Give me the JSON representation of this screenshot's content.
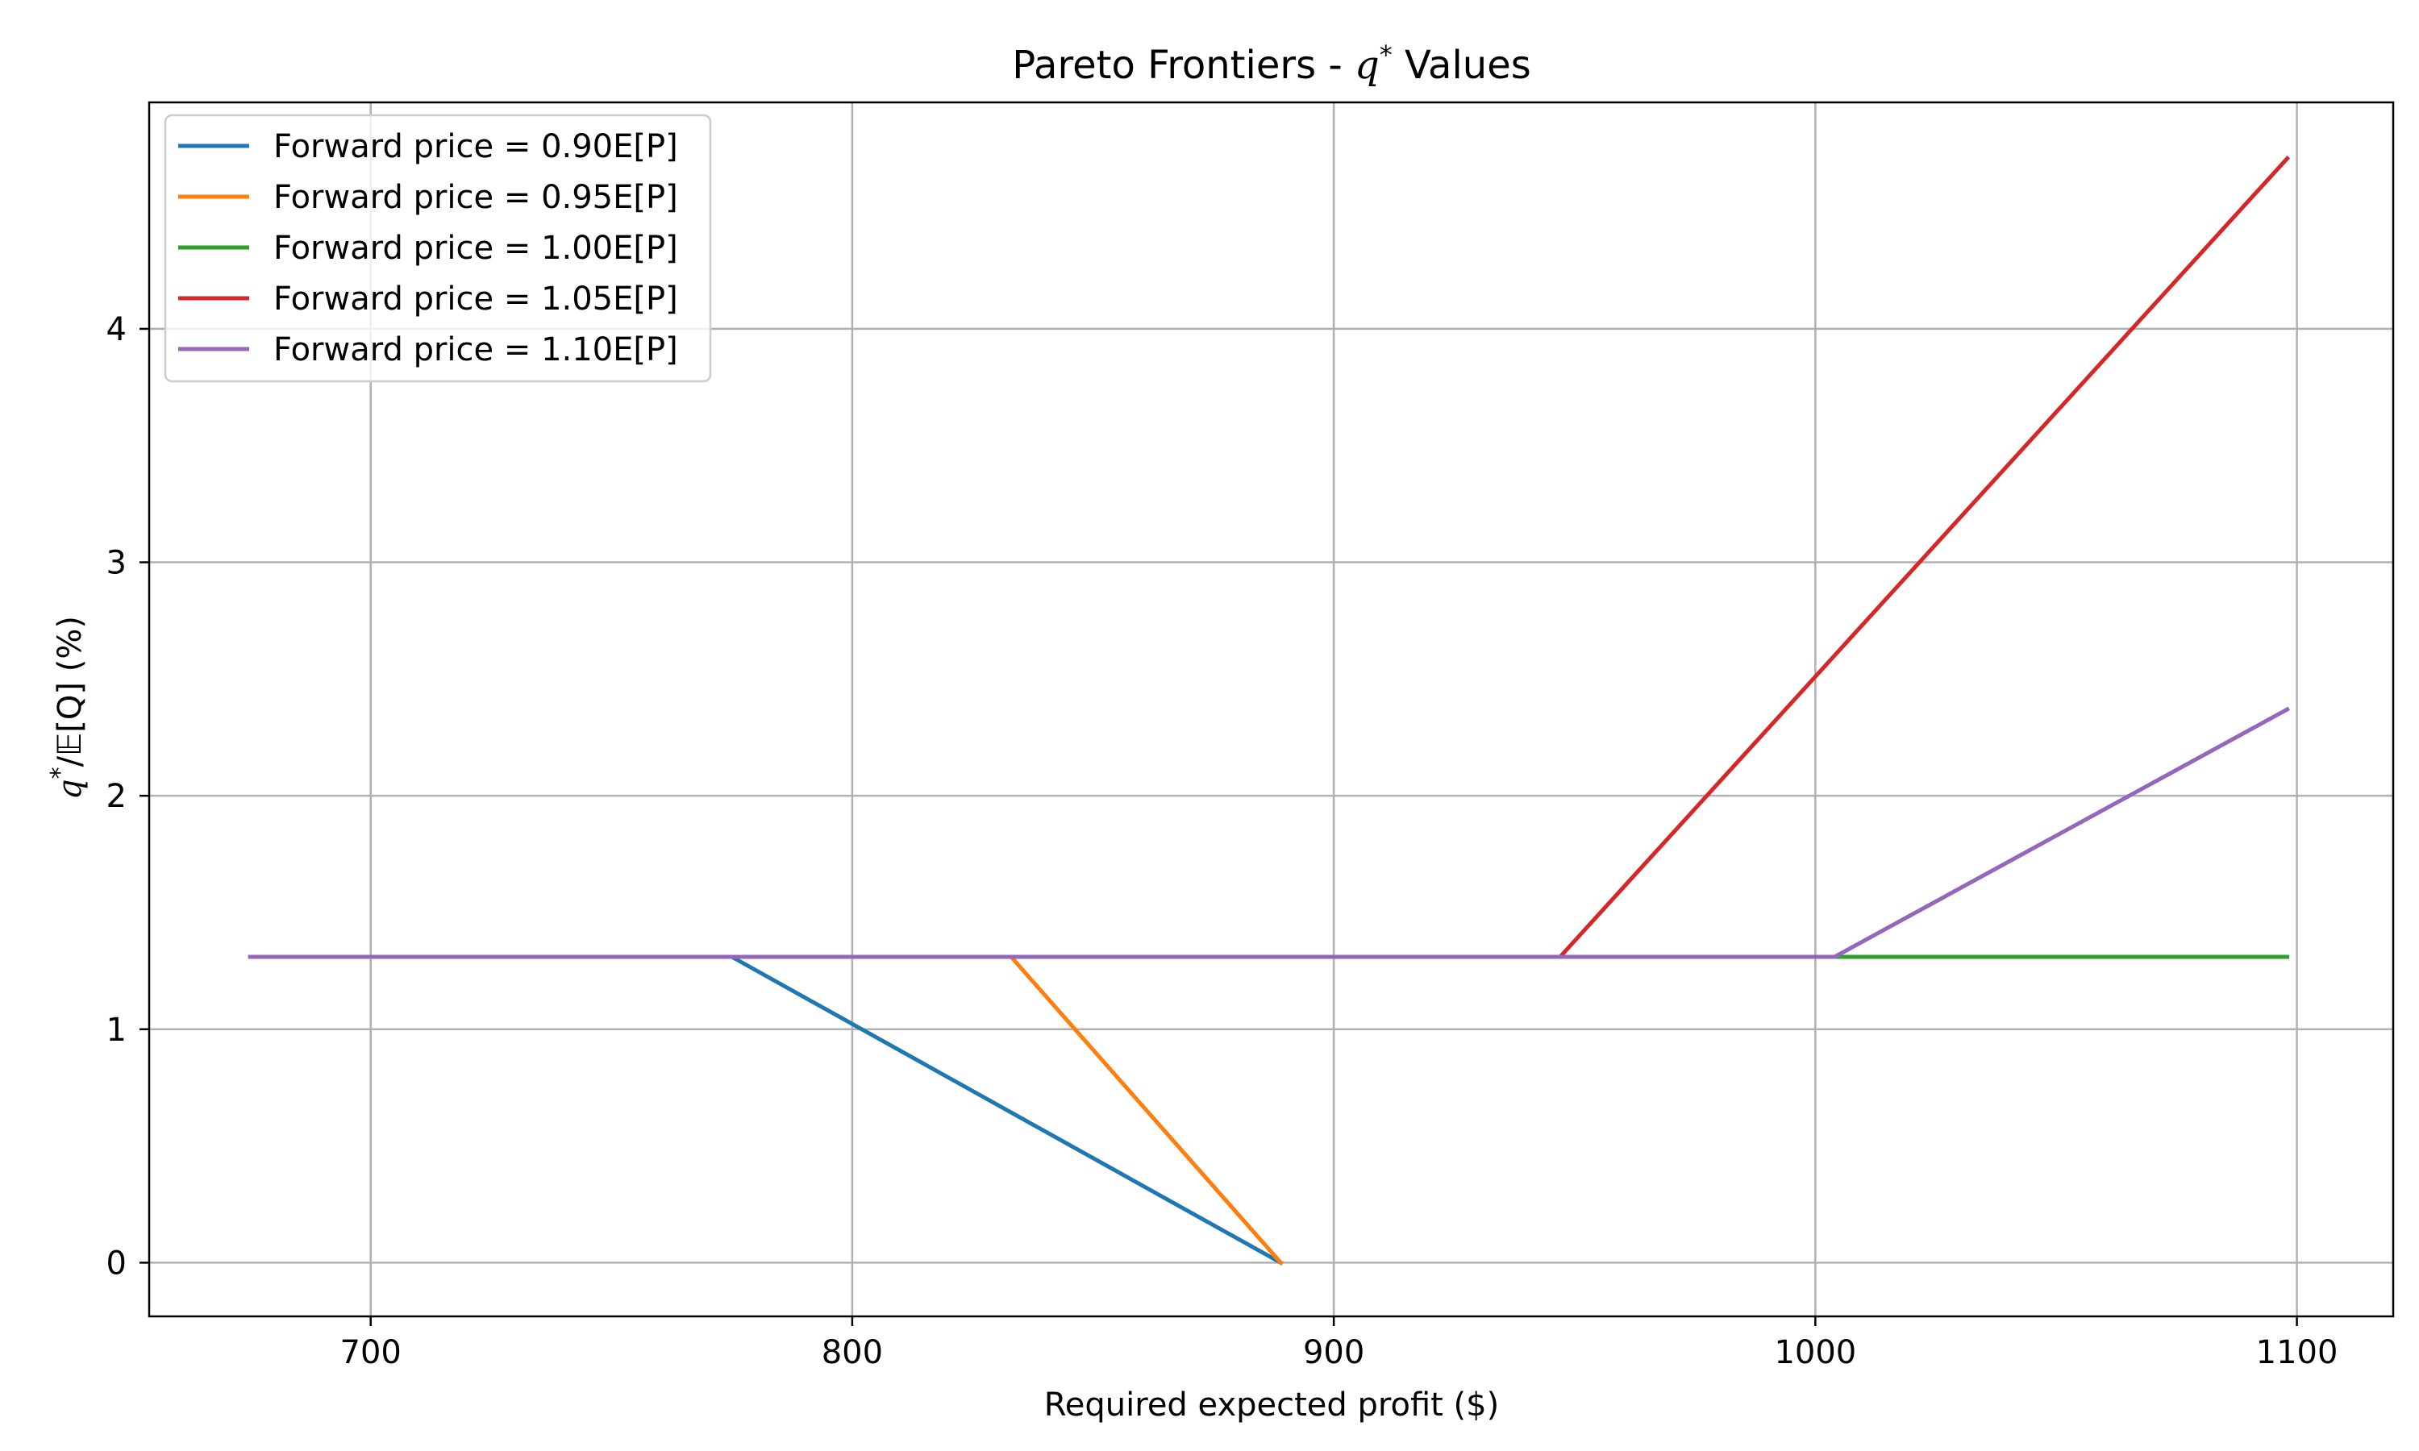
{
  "chart_data": {
    "type": "line",
    "title": "Pareto Frontiers - q* Values",
    "title_parts": {
      "prefix": "Pareto Frontiers - ",
      "var": "q",
      "sup": "*",
      "suffix": " Values"
    },
    "xlabel": "Required expected profit ($)",
    "ylabel": "q*/𝔼[Q] (%)",
    "ylabel_parts": {
      "var": "q",
      "sup": "*",
      "rest": "/𝔼[Q] (%)"
    },
    "xlim": [
      654,
      1120
    ],
    "ylim": [
      -0.23,
      4.97
    ],
    "xticks": [
      700,
      800,
      900,
      1000,
      1100
    ],
    "xtick_labels": [
      "700",
      "800",
      "900",
      "1000",
      "1100"
    ],
    "yticks": [
      0,
      1,
      2,
      3,
      4
    ],
    "ytick_labels": [
      "0",
      "1",
      "2",
      "3",
      "4"
    ],
    "grid": true,
    "legend_position": "top-left",
    "series": [
      {
        "name": "Forward price = 0.90E[P]",
        "color": "#1f77b4",
        "x": [
          675,
          775,
          889
        ],
        "y": [
          1.31,
          1.31,
          0
        ]
      },
      {
        "name": "Forward price = 0.95E[P]",
        "color": "#ff7f0e",
        "x": [
          675,
          833,
          889
        ],
        "y": [
          1.31,
          1.31,
          0
        ]
      },
      {
        "name": "Forward price = 1.00E[P]",
        "color": "#2ca02c",
        "x": [
          675,
          1098
        ],
        "y": [
          1.31,
          1.31
        ]
      },
      {
        "name": "Forward price = 1.05E[P]",
        "color": "#d62728",
        "x": [
          675,
          947,
          1098
        ],
        "y": [
          1.31,
          1.31,
          4.73
        ]
      },
      {
        "name": "Forward price = 1.10E[P]",
        "color": "#9467bd",
        "x": [
          675,
          1004,
          1098
        ],
        "y": [
          1.31,
          1.31,
          2.37
        ]
      }
    ]
  }
}
